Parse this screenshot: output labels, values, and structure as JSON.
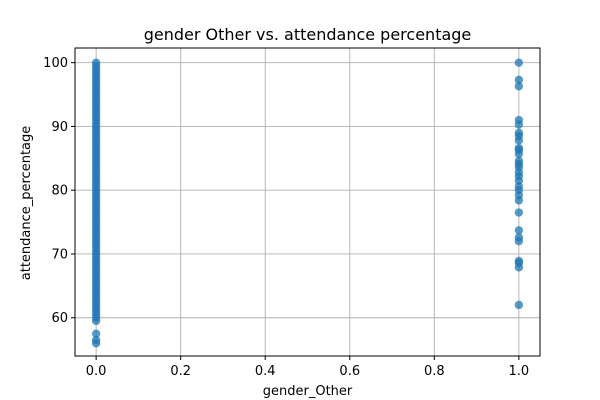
{
  "chart_data": {
    "type": "scatter",
    "title": "gender Other vs. attendance percentage",
    "xlabel": "gender_Other",
    "ylabel": "attendance_percentage",
    "xlim": [
      -0.05,
      1.05
    ],
    "ylim": [
      54.0,
      102.3
    ],
    "xticks": [
      0.0,
      0.2,
      0.4,
      0.6,
      0.8,
      1.0
    ],
    "xtick_labels": [
      "0.0",
      "0.2",
      "0.4",
      "0.6",
      "0.8",
      "1.0"
    ],
    "yticks": [
      60,
      70,
      80,
      90,
      100
    ],
    "ytick_labels": [
      "60",
      "70",
      "80",
      "90",
      "100"
    ],
    "grid": true,
    "marker_color": "#1f77b4",
    "marker_alpha": 0.75,
    "series": [
      {
        "x_value": 0,
        "y": [
          56.0,
          56.5,
          57.5,
          59.5,
          60.0,
          60.5,
          61.0,
          61.5,
          62.0,
          62.5,
          63.0,
          63.5,
          64.0,
          64.5,
          65.0,
          65.5,
          66.0,
          66.5,
          67.0,
          67.5,
          68.0,
          68.5,
          69.0,
          69.5,
          70.0,
          70.5,
          71.0,
          71.5,
          72.0,
          72.5,
          73.0,
          73.5,
          74.0,
          74.5,
          75.0,
          75.5,
          76.0,
          76.5,
          77.0,
          77.5,
          78.0,
          78.5,
          79.0,
          79.5,
          80.0,
          80.5,
          81.0,
          81.5,
          82.0,
          82.5,
          83.0,
          83.5,
          84.0,
          84.5,
          85.0,
          85.5,
          86.0,
          86.5,
          87.0,
          87.5,
          88.0,
          88.5,
          89.0,
          89.5,
          90.0,
          90.5,
          91.0,
          91.5,
          92.0,
          92.5,
          93.0,
          93.5,
          94.0,
          94.5,
          95.0,
          95.5,
          96.0,
          96.5,
          97.0,
          97.5,
          98.0,
          98.5,
          99.0,
          99.5,
          100.0
        ]
      },
      {
        "x_value": 1,
        "y": [
          62.0,
          67.9,
          68.6,
          68.9,
          72.0,
          72.6,
          73.7,
          76.5,
          78.4,
          79.2,
          80.0,
          80.6,
          81.5,
          82.2,
          82.8,
          83.6,
          84.1,
          84.6,
          85.7,
          86.3,
          86.6,
          87.8,
          88.5,
          89.0,
          90.3,
          91.0,
          96.3,
          97.3,
          100.0
        ]
      }
    ]
  }
}
